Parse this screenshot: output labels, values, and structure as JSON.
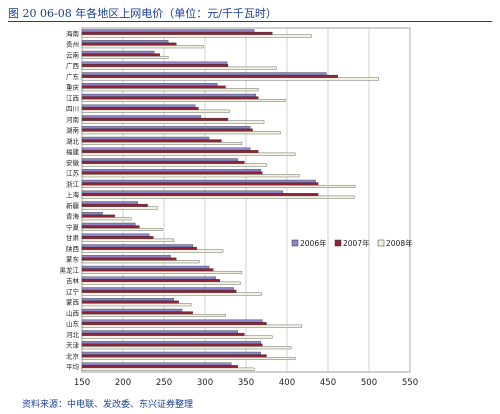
{
  "page": {
    "title": "图 20 06-08 年各地区上网电价（单位：元/千千瓦时）",
    "source": "资料来源：中电联、发改委、东兴证券整理"
  },
  "chart_data": {
    "type": "bar",
    "orientation": "horizontal",
    "title": "",
    "xlabel": "",
    "ylabel": "",
    "xlim": [
      150,
      550
    ],
    "xticks": [
      150,
      200,
      250,
      300,
      350,
      400,
      450,
      500,
      550
    ],
    "grid": true,
    "legend_position": "right-middle",
    "categories": [
      "海南",
      "贵州",
      "云南",
      "广西",
      "广东",
      "重庆",
      "江西",
      "四川",
      "河南",
      "湖南",
      "湖北",
      "福建",
      "安徽",
      "江苏",
      "浙江",
      "上海",
      "新疆",
      "青海",
      "宁夏",
      "甘肃",
      "陕西",
      "蒙东",
      "黑龙江",
      "吉林",
      "辽宁",
      "蒙西",
      "山西",
      "山东",
      "河北",
      "天津",
      "北京",
      "平均"
    ],
    "series": [
      {
        "name": "2006年",
        "color": "#8c86c9",
        "values": [
          360,
          255,
          238,
          327,
          448,
          315,
          362,
          288,
          295,
          355,
          305,
          355,
          340,
          368,
          435,
          395,
          218,
          175,
          215,
          232,
          285,
          258,
          305,
          313,
          335,
          262,
          272,
          370,
          340,
          368,
          368,
          332
        ]
      },
      {
        "name": "2007年",
        "color": "#8e2238",
        "values": [
          382,
          265,
          245,
          328,
          462,
          325,
          365,
          292,
          328,
          358,
          320,
          365,
          348,
          370,
          438,
          438,
          230,
          190,
          220,
          237,
          290,
          265,
          310,
          318,
          338,
          268,
          285,
          375,
          348,
          370,
          375,
          340
        ]
      },
      {
        "name": "2008年",
        "color": "#f2f2e0",
        "values": [
          430,
          298,
          255,
          387,
          512,
          365,
          398,
          330,
          372,
          392,
          345,
          410,
          375,
          415,
          483,
          482,
          242,
          210,
          248,
          262,
          322,
          293,
          345,
          343,
          369,
          283,
          325,
          418,
          382,
          405,
          410,
          360
        ]
      }
    ],
    "legend": [
      "2006年",
      "2007年",
      "2008年"
    ]
  }
}
